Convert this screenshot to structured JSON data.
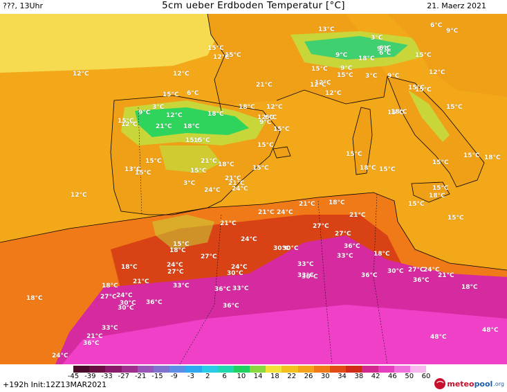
{
  "header": {
    "left": "???, 13Uhr",
    "title": "5cm ueber Erdboden Temperatur [°C]",
    "date": "21. Maerz 2021"
  },
  "colors": {
    "sea": "#f3a81a",
    "cold_land": "#2fd45c",
    "cool_land": "#c9d63a",
    "mild_land": "#f3b020",
    "warm": "#f07a18",
    "hot": "#d84214",
    "very_hot": "#d62aa0",
    "extreme": "#f040c8",
    "north_sea": "#f6e45a"
  },
  "colorbar": {
    "ticks": [
      "-45",
      "-39",
      "-33",
      "-27",
      "-21",
      "-15",
      "-9",
      "-3",
      "2",
      "6",
      "10",
      "14",
      "18",
      "22",
      "26",
      "30",
      "34",
      "38",
      "42",
      "46",
      "50",
      "60"
    ],
    "colors": [
      "#4a0a2a",
      "#6b0f44",
      "#8a1a6a",
      "#a0308e",
      "#9a56b6",
      "#7e74d0",
      "#5c8ee6",
      "#2fa8f0",
      "#2ccbe8",
      "#20d8b0",
      "#20d060",
      "#8ad840",
      "#f3e23a",
      "#f3c020",
      "#f3a01a",
      "#f07a18",
      "#e24a16",
      "#d02a18",
      "#d02a90",
      "#e440c0",
      "#f070dc",
      "#f8b8ee"
    ]
  },
  "map_labels": [
    {
      "text": "12°C"
    },
    {
      "text": "12°C"
    },
    {
      "text": "15°C"
    },
    {
      "text": "13°C"
    },
    {
      "text": "12°C"
    },
    {
      "text": "15°C"
    },
    {
      "text": "15°C"
    },
    {
      "text": "12°C"
    },
    {
      "text": "15°C"
    },
    {
      "text": "3°C"
    },
    {
      "text": "9°C"
    },
    {
      "text": "6°C"
    },
    {
      "text": "12°C"
    },
    {
      "text": "3°C"
    },
    {
      "text": "6°C"
    },
    {
      "text": "9°C"
    },
    {
      "text": "6°C"
    },
    {
      "text": "9°C"
    },
    {
      "text": "12°C"
    },
    {
      "text": "15°C"
    },
    {
      "text": "18°C"
    },
    {
      "text": "9°C"
    },
    {
      "text": "12°C"
    },
    {
      "text": "9°C"
    },
    {
      "text": "3°C"
    },
    {
      "text": "15°C"
    },
    {
      "text": "12°C"
    },
    {
      "text": "18°C"
    },
    {
      "text": "21°C"
    },
    {
      "text": "18°C"
    },
    {
      "text": "15°C"
    },
    {
      "text": "15°C"
    },
    {
      "text": "21°C"
    },
    {
      "text": "18°C"
    },
    {
      "text": "15°C"
    },
    {
      "text": "21°C"
    },
    {
      "text": "15°C"
    },
    {
      "text": "15°C"
    },
    {
      "text": "15°C"
    },
    {
      "text": "9°C"
    },
    {
      "text": "12°C"
    },
    {
      "text": "15°C"
    },
    {
      "text": "18°C"
    },
    {
      "text": "21°C"
    },
    {
      "text": "12°C"
    },
    {
      "text": "15°C"
    },
    {
      "text": "15°C"
    },
    {
      "text": "6°C"
    },
    {
      "text": "9°C"
    },
    {
      "text": "3°C"
    },
    {
      "text": "6°C"
    },
    {
      "text": "12°C"
    },
    {
      "text": "15°C"
    },
    {
      "text": "13°C"
    },
    {
      "text": "12°C"
    },
    {
      "text": "15°C"
    },
    {
      "text": "15°C"
    },
    {
      "text": "18°C"
    },
    {
      "text": "15°C"
    },
    {
      "text": "15°C"
    },
    {
      "text": "15°C"
    },
    {
      "text": "15°C"
    },
    {
      "text": "18°C"
    },
    {
      "text": "15°C"
    },
    {
      "text": "18°C"
    },
    {
      "text": "15°C"
    },
    {
      "text": "15°C"
    },
    {
      "text": "15°C"
    },
    {
      "text": "18°C"
    },
    {
      "text": "21°C"
    },
    {
      "text": "24°C"
    },
    {
      "text": "24°C"
    },
    {
      "text": "21°C"
    },
    {
      "text": "18°C"
    },
    {
      "text": "24°C"
    },
    {
      "text": "21°C"
    },
    {
      "text": "21°C"
    },
    {
      "text": "27°C"
    },
    {
      "text": "21°C"
    },
    {
      "text": "15°C"
    },
    {
      "text": "18°C"
    },
    {
      "text": "24°C"
    },
    {
      "text": "30°C"
    },
    {
      "text": "27°C"
    },
    {
      "text": "36°C"
    },
    {
      "text": "18°C"
    },
    {
      "text": "30°C"
    },
    {
      "text": "33°C"
    },
    {
      "text": "33°C"
    },
    {
      "text": "18°C"
    },
    {
      "text": "24°C"
    },
    {
      "text": "27°C"
    },
    {
      "text": "27°C"
    },
    {
      "text": "24°C"
    },
    {
      "text": "30°C"
    },
    {
      "text": "33°C"
    },
    {
      "text": "30°C"
    },
    {
      "text": "27°C"
    },
    {
      "text": "24°C"
    },
    {
      "text": "21°C"
    },
    {
      "text": "18°C"
    },
    {
      "text": "21°C"
    },
    {
      "text": "33°C"
    },
    {
      "text": "36°C"
    },
    {
      "text": "33°C"
    },
    {
      "text": "36°C"
    },
    {
      "text": "36°C"
    },
    {
      "text": "36°C"
    },
    {
      "text": "18°C"
    },
    {
      "text": "27°C"
    },
    {
      "text": "24°C"
    },
    {
      "text": "30°C"
    },
    {
      "text": "36°C"
    },
    {
      "text": "36°C"
    },
    {
      "text": "30°C"
    },
    {
      "text": "18°C"
    },
    {
      "text": "33°C"
    },
    {
      "text": "21°C"
    },
    {
      "text": "36°C"
    },
    {
      "text": "24°C"
    },
    {
      "text": "48°C"
    },
    {
      "text": "48°C"
    }
  ],
  "footer": {
    "run_info": "+192h  Init:12Z13MAR2021",
    "logo_meteo": "meteo",
    "logo_pool": "pool",
    "logo_tld": ".org",
    "logo_icon": "meteopool-logo-icon"
  }
}
